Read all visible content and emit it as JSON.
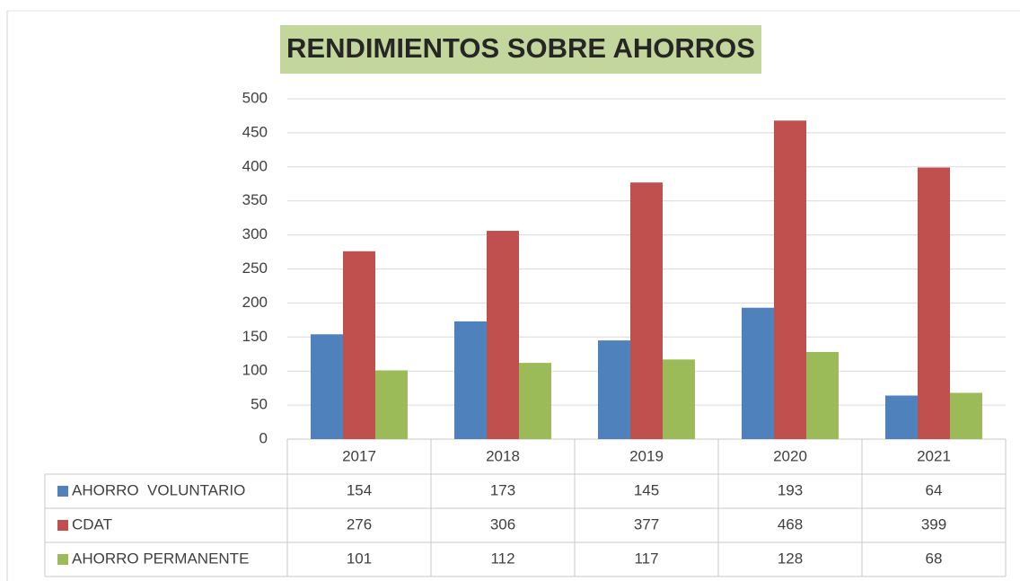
{
  "chart_data": {
    "type": "bar",
    "title": "RENDIMIENTOS SOBRE AHORROS",
    "categories": [
      "2017",
      "2018",
      "2019",
      "2020",
      "2021"
    ],
    "series": [
      {
        "name": "AHORRO  VOLUNTARIO",
        "color": "#4f81bd",
        "values": [
          154,
          173,
          145,
          193,
          64
        ]
      },
      {
        "name": "CDAT",
        "color": "#c0504d",
        "values": [
          276,
          306,
          377,
          468,
          399
        ]
      },
      {
        "name": "AHORRO PERMANENTE",
        "color": "#9bbb59",
        "values": [
          101,
          112,
          117,
          128,
          68
        ]
      }
    ],
    "ylim": [
      0,
      500
    ],
    "yticks": [
      0,
      50,
      100,
      150,
      200,
      250,
      300,
      350,
      400,
      450,
      500
    ],
    "grid": true
  }
}
